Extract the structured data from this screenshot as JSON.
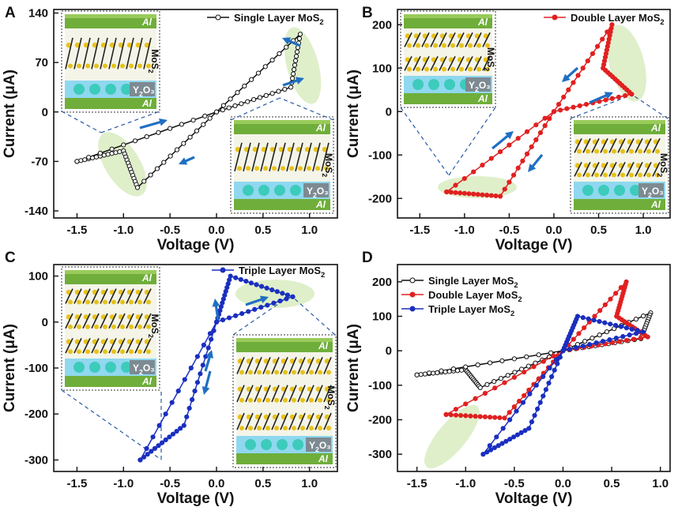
{
  "figure": {
    "layer_labels": {
      "electrode": "Al",
      "oxide": "Y₂O₃",
      "mos2": "MoS₂"
    }
  },
  "chart_data": [
    {
      "panel": "A",
      "type": "line",
      "title": "",
      "xlabel": "Voltage (V)",
      "ylabel": "Current (μA)",
      "xlim": [
        -1.75,
        1.3
      ],
      "ylim": [
        -150,
        145
      ],
      "xticks": [
        -1.5,
        -1.0,
        -0.5,
        0.0,
        0.5,
        1.0
      ],
      "xtick_labels": [
        "-1.5",
        "-1.0",
        "-0.5",
        "0.0",
        "0.5",
        "1.0"
      ],
      "yticks": [
        -140,
        -70,
        0,
        70,
        140
      ],
      "ytick_labels": [
        "-140",
        "-70",
        "0",
        "70",
        "140"
      ],
      "legend_position": "top-right",
      "series": [
        {
          "name": "Single Layer MoS₂",
          "color": "#111111",
          "x": [
            -1.5,
            -1.0,
            -0.85,
            0.0,
            0.9,
            0.8,
            0.0,
            -1.5
          ],
          "y": [
            -70,
            -55,
            -107,
            0,
            110,
            35,
            0,
            -70
          ]
        }
      ],
      "insets": [
        "top-left",
        "bottom-right"
      ],
      "arrows": 4
    },
    {
      "panel": "B",
      "type": "line",
      "title": "",
      "xlabel": "Voltage (V)",
      "ylabel": "Current (μA)",
      "xlim": [
        -1.75,
        1.3
      ],
      "ylim": [
        -245,
        235
      ],
      "xticks": [
        -1.5,
        -1.0,
        -0.5,
        0.0,
        0.5,
        1.0
      ],
      "xtick_labels": [
        "-1.5",
        "-1.0",
        "-0.5",
        "0.0",
        "0.5",
        "1.0"
      ],
      "yticks": [
        -200,
        -100,
        0,
        100,
        200
      ],
      "ytick_labels": [
        "-200",
        "-100",
        "0",
        "100",
        "200"
      ],
      "legend_position": "top-right",
      "series": [
        {
          "name": "Double Layer MoS₂",
          "color": "#e02020",
          "x": [
            -1.2,
            -0.6,
            0.0,
            0.65,
            0.55,
            0.87,
            0.0,
            -1.2
          ],
          "y": [
            -185,
            -195,
            0,
            200,
            100,
            40,
            0,
            -185
          ]
        }
      ],
      "insets": [
        "top-left",
        "bottom-right"
      ],
      "arrows": 4
    },
    {
      "panel": "C",
      "type": "line",
      "title": "",
      "xlabel": "Voltage (V)",
      "ylabel": "Current (μA)",
      "xlim": [
        -1.75,
        1.3
      ],
      "ylim": [
        -325,
        125
      ],
      "xticks": [
        -1.5,
        -1.0,
        -0.5,
        0.0,
        0.5,
        1.0
      ],
      "xtick_labels": [
        "-1.5",
        "-1.0",
        "-0.5",
        "0.0",
        "0.5",
        "1.0"
      ],
      "yticks": [
        -300,
        -200,
        -100,
        0,
        100
      ],
      "ytick_labels": [
        "-300",
        "-200",
        "-100",
        "0",
        "100"
      ],
      "legend_position": "top-right",
      "series": [
        {
          "name": "Triple Layer MoS₂",
          "color": "#1a2fbf",
          "x": [
            -0.82,
            -0.35,
            0.0,
            0.15,
            0.82,
            0.0,
            -0.82
          ],
          "y": [
            -300,
            -225,
            0,
            100,
            55,
            0,
            -300
          ]
        }
      ],
      "insets": [
        "top-left",
        "bottom-right"
      ],
      "arrows": 4
    },
    {
      "panel": "D",
      "type": "line",
      "title": "",
      "xlabel": "Voltage (V)",
      "ylabel": "Current (μA)",
      "xlim": [
        -1.7,
        1.1
      ],
      "ylim": [
        -350,
        250
      ],
      "xticks": [
        -1.5,
        -1.0,
        -0.5,
        0.0,
        0.5,
        1.0
      ],
      "xtick_labels": [
        "-1.5",
        "-1.0",
        "-0.5",
        "0.0",
        "0.5",
        "1.0"
      ],
      "yticks": [
        -300,
        -200,
        -100,
        0,
        100,
        200
      ],
      "ytick_labels": [
        "-300",
        "-200",
        "-100",
        "0",
        "100",
        "200"
      ],
      "legend_position": "top-left",
      "series": [
        {
          "name": "Single Layer MoS₂",
          "color": "#111111",
          "x": [
            -1.5,
            -1.0,
            -0.85,
            0.0,
            0.9,
            0.8,
            0.0,
            -1.5
          ],
          "y": [
            -70,
            -55,
            -107,
            0,
            110,
            35,
            0,
            -70
          ]
        },
        {
          "name": "Double Layer MoS₂",
          "color": "#e02020",
          "x": [
            -1.2,
            -0.6,
            0.0,
            0.65,
            0.55,
            0.87,
            0.0,
            -1.2
          ],
          "y": [
            -185,
            -195,
            0,
            200,
            100,
            40,
            0,
            -185
          ]
        },
        {
          "name": "Triple Layer MoS₂",
          "color": "#1a2fbf",
          "x": [
            -0.82,
            -0.35,
            0.0,
            0.15,
            0.82,
            0.0,
            -0.82
          ],
          "y": [
            -300,
            -225,
            0,
            100,
            55,
            0,
            -300
          ]
        }
      ],
      "insets": [],
      "arrows": 0
    }
  ]
}
